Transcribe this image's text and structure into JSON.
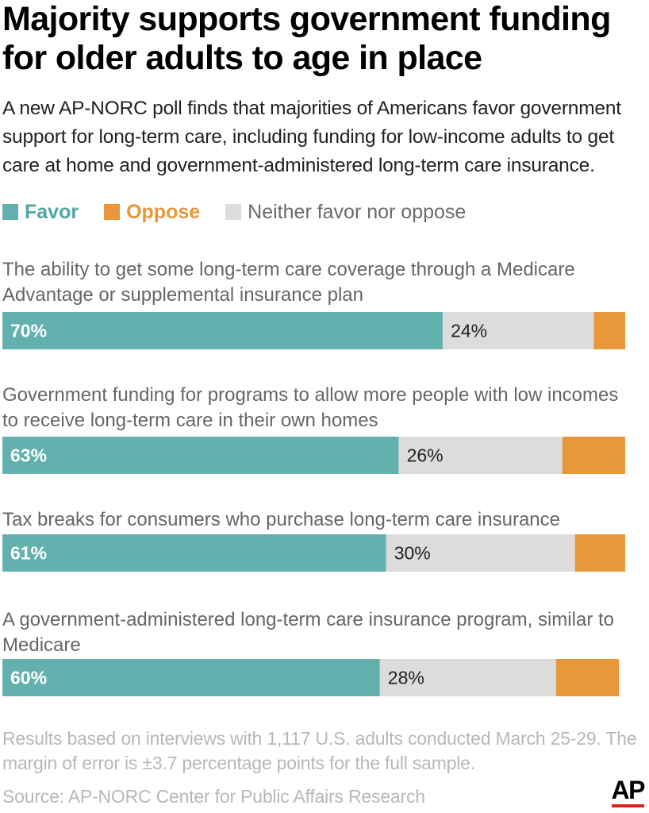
{
  "header": {
    "title": "Majority supports government funding for older adults to age in place",
    "subtitle": "A new AP-NORC poll finds that majorities of Americans favor government support for long-term care, including funding for low-income adults to get care at home and government-administered long-term care insurance."
  },
  "legend": {
    "items": [
      {
        "label": "Favor",
        "color": "#63b1ae"
      },
      {
        "label": "Oppose",
        "color": "#e8973a"
      },
      {
        "label": "Neither favor nor oppose",
        "color": "#dcdcdc"
      }
    ]
  },
  "chart_data": {
    "type": "bar",
    "orientation": "horizontal",
    "stacked": true,
    "xlim": [
      0,
      100
    ],
    "categories": [
      "The ability to get some long-term care coverage through a Medicare Advantage or supplemental insurance plan",
      "Government funding for programs to allow more people with low incomes to receive long-term care in their own homes",
      "Tax breaks for consumers who purchase long-term care insurance",
      "A government-administered long-term care insurance program, similar to Medicare"
    ],
    "series": [
      {
        "name": "Favor",
        "color": "#63b1ae",
        "values": [
          70,
          63,
          61,
          60
        ],
        "labels": [
          "70%",
          "63%",
          "61%",
          "60%"
        ]
      },
      {
        "name": "Neither favor nor oppose",
        "color": "#dcdcdc",
        "values": [
          24,
          26,
          30,
          28
        ],
        "labels": [
          "24%",
          "26%",
          "30%",
          "28%"
        ]
      },
      {
        "name": "Oppose",
        "color": "#e8973a",
        "values": [
          5,
          10,
          8,
          10
        ],
        "labels": [
          "",
          "",
          "",
          ""
        ]
      }
    ],
    "gridlines": false,
    "legend_position": "top-left"
  },
  "footer": {
    "note": "Results based on interviews with 1,117 U.S. adults conducted March 25-29. The margin of error is ±3.7 percentage points for the full sample.",
    "source": "Source: AP-NORC Center for Public Affairs Research",
    "logo": "AP"
  }
}
